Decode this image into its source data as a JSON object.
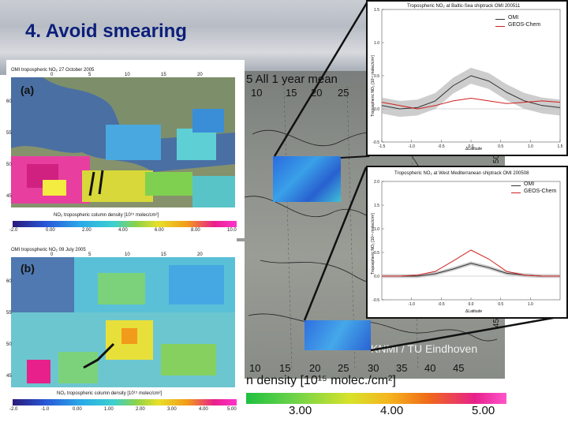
{
  "slide": {
    "title": "4. Avoid smearing"
  },
  "big_map": {
    "title": "5 All 1 year mean",
    "top_ticks": [
      "10",
      "15",
      "20",
      "25"
    ],
    "bottom_ticks": [
      "10",
      "15",
      "20",
      "25",
      "30",
      "35",
      "40",
      "45"
    ],
    "right_ticks": [
      "50",
      "45"
    ],
    "credit": "KNMI / TU Eindhoven",
    "colorbar_label": "n density [10¹⁵ molec./cm²]",
    "colorbar_ticks": [
      "3.00",
      "4.00",
      "5.00"
    ]
  },
  "panel_a": {
    "title": "OMI tropospheric NO₂   27 October 2005",
    "label": "(a)",
    "lon_ticks": [
      "0",
      "5",
      "10",
      "15",
      "20"
    ],
    "lat_ticks": [
      "60",
      "55",
      "50",
      "45"
    ],
    "colorbar_label": "NO₂ tropospheric column density [10¹⁵ molec/cm²]",
    "colorbar_ticks": [
      "-2.0",
      "0.00",
      "2.00",
      "4.00",
      "6.00",
      "8.00",
      "10.0"
    ]
  },
  "panel_b": {
    "title": "OMI tropospheric NO₂   09 July 2005",
    "label": "(b)",
    "lon_ticks": [
      "0",
      "5",
      "10",
      "15",
      "20"
    ],
    "lat_ticks": [
      "60",
      "55",
      "50",
      "45"
    ],
    "colorbar_label": "NO₂ tropospheric column density [10¹⁵ molec/cm²]",
    "colorbar_ticks": [
      "-2.0",
      "-1.0",
      "0.00",
      "1.00",
      "2.00",
      "3.00",
      "4.00",
      "5.00"
    ]
  },
  "chart_data": [
    {
      "type": "line",
      "title": "Tropospheric NO₂ at Baltic-Sea shiptrack OMI 200511",
      "xlabel": "ΔLatitude",
      "ylabel": "Tropospheric NO₂ [10¹⁵ molec/cm²]",
      "xlim": [
        -1.5,
        1.5
      ],
      "ylim": [
        -0.5,
        1.5
      ],
      "x_ticks": [
        "-1.5",
        "-1.0",
        "-0.5",
        "0.0",
        "0.5",
        "1.0",
        "1.5"
      ],
      "y_ticks": [
        "1.5",
        "1.0",
        "0.5",
        "0.0",
        "-0.5"
      ],
      "x": [
        -1.5,
        -1.2,
        -0.9,
        -0.6,
        -0.3,
        0.0,
        0.3,
        0.6,
        0.9,
        1.2,
        1.5
      ],
      "series": [
        {
          "name": "OMI",
          "color": "#333333",
          "values": [
            0.05,
            0.0,
            0.02,
            0.12,
            0.35,
            0.5,
            0.42,
            0.25,
            0.12,
            0.05,
            0.02
          ]
        },
        {
          "name": "GEOS-Chem",
          "color": "#d02020",
          "values": [
            0.1,
            0.05,
            0.0,
            0.05,
            0.12,
            0.16,
            0.12,
            0.08,
            0.1,
            0.12,
            0.1
          ]
        }
      ],
      "band": {
        "series": "OMI",
        "spread": 0.12,
        "color": "#b8b8b8"
      }
    },
    {
      "type": "line",
      "title": "Tropospheric NO₂ at West Mediterranean shiptrack OMI 200508",
      "xlabel": "ΔLatitude",
      "ylabel": "Tropospheric NO₂ [10¹⁵ molec/cm²]",
      "xlim": [
        -1.5,
        1.5
      ],
      "ylim": [
        -0.5,
        2.0
      ],
      "x_ticks": [
        "-1.0",
        "-0.5",
        "0.0",
        "0.5",
        "1.0"
      ],
      "y_ticks": [
        "2.0",
        "1.5",
        "1.0",
        "0.5",
        "0.0",
        "-0.5"
      ],
      "x": [
        -1.5,
        -1.2,
        -0.9,
        -0.6,
        -0.3,
        0.0,
        0.3,
        0.6,
        0.9,
        1.2,
        1.5
      ],
      "series": [
        {
          "name": "OMI",
          "color": "#333333",
          "values": [
            0.0,
            0.0,
            0.0,
            0.05,
            0.15,
            0.27,
            0.18,
            0.06,
            0.02,
            0.0,
            0.0
          ]
        },
        {
          "name": "GEOS-Chem",
          "color": "#d02020",
          "values": [
            0.0,
            0.0,
            0.02,
            0.1,
            0.32,
            0.55,
            0.36,
            0.1,
            0.02,
            0.0,
            0.0
          ]
        }
      ],
      "band": {
        "series": "OMI",
        "spread": 0.04,
        "color": "#b8b8b8"
      }
    }
  ]
}
